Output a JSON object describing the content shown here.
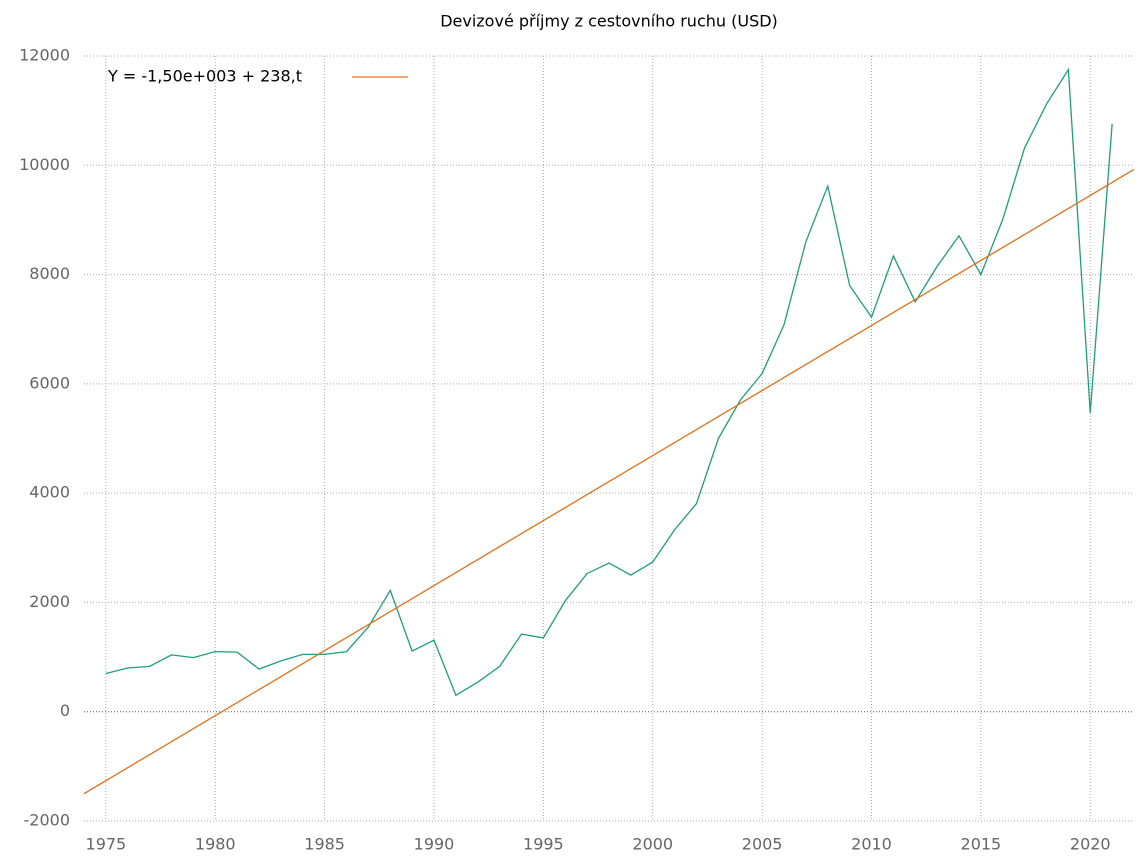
{
  "chart_data": {
    "type": "line",
    "title": "Devizové příjmy z cestovního ruchu (USD)",
    "xlim": [
      1974,
      2022
    ],
    "ylim": [
      -2000,
      12000
    ],
    "xticks": [
      1975,
      1980,
      1985,
      1990,
      1995,
      2000,
      2005,
      2010,
      2015,
      2020
    ],
    "yticks": [
      -2000,
      0,
      2000,
      4000,
      6000,
      8000,
      10000,
      12000
    ],
    "grid": true,
    "legend": "top-left",
    "series": [
      {
        "color": "#1e9e7a",
        "x": [
          1975,
          1976,
          1977,
          1978,
          1979,
          1980,
          1981,
          1982,
          1983,
          1984,
          1985,
          1986,
          1987,
          1988,
          1989,
          1990,
          1991,
          1992,
          1993,
          1994,
          1995,
          1996,
          1997,
          1998,
          1999,
          2000,
          2001,
          2002,
          2003,
          2004,
          2005,
          2006,
          2007,
          2008,
          2009,
          2010,
          2011,
          2012,
          2013,
          2014,
          2015,
          2016,
          2017,
          2018,
          2019,
          2020,
          2021
        ],
        "values": [
          700,
          800,
          830,
          1040,
          990,
          1100,
          1090,
          780,
          930,
          1050,
          1050,
          1100,
          1550,
          2220,
          1110,
          1310,
          300,
          540,
          830,
          1420,
          1350,
          2030,
          2530,
          2720,
          2500,
          2740,
          3330,
          3810,
          5000,
          5700,
          6190,
          7080,
          8600,
          9620,
          7800,
          7220,
          8340,
          7500,
          8150,
          8710,
          8000,
          9010,
          10320,
          11120,
          11750,
          5470,
          10760
        ]
      },
      {
        "name": "Y = -1,50e+003 + 238,t",
        "color": "#e0701a",
        "x": [
          1974,
          2022
        ],
        "values": [
          -1500,
          9924
        ]
      }
    ]
  }
}
